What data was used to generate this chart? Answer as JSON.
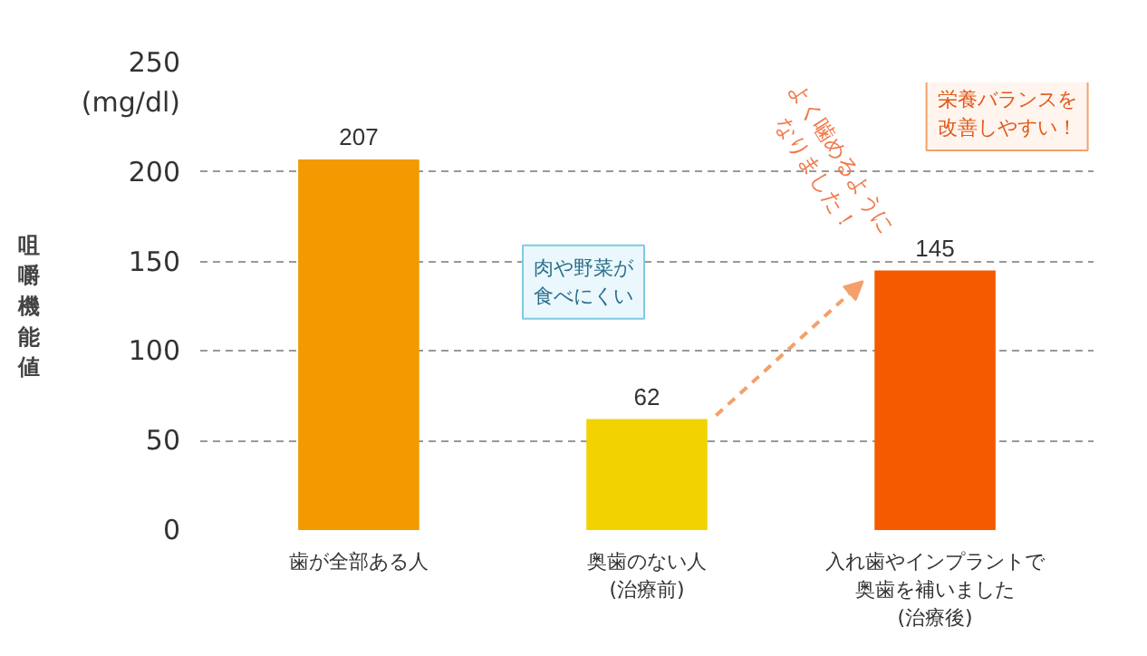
{
  "chart_data": {
    "type": "bar",
    "ylabel": "咀嚼機能値",
    "categories": [
      "歯が全部ある人",
      "奥歯のない人\n(治療前)",
      "入れ歯やインプラントで奥歯を補いました\n(治療後)"
    ],
    "values": [
      207,
      62,
      145
    ],
    "colors": [
      "#f29a00",
      "#f2d200",
      "#f55a00"
    ],
    "ylim": [
      0,
      250
    ],
    "yticks": [
      0,
      50,
      100,
      150,
      200,
      {
        "value": 250,
        "label": "250\n(mg/dl)"
      }
    ],
    "grid": "y",
    "data_labels": true,
    "annotations": [
      "肉や野菜が食べにくい",
      "よく噛めるようになりました！",
      "栄養バランスを改善しやすい！"
    ]
  }
}
